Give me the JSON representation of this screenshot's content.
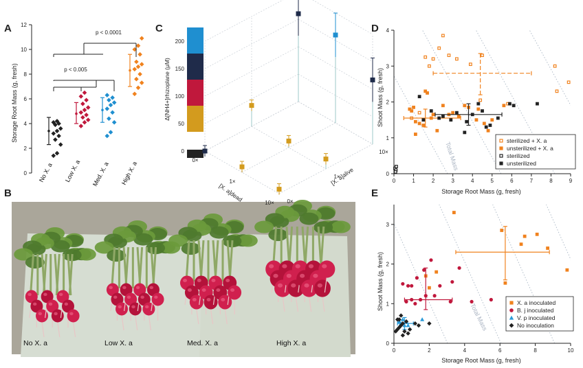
{
  "panels": {
    "a": "A",
    "b": "B",
    "c": "C",
    "d": "D",
    "e": "E"
  },
  "photo_labels": [
    "No X. a",
    "Low X. a",
    "Med. X. a",
    "High X. a"
  ],
  "colors": {
    "none": "#222222",
    "low": "#c0183c",
    "med": "#1f8fd0",
    "high": "#f0821e",
    "navy": "#1f2b4a",
    "gold": "#d39b1e",
    "bj": "#c0183c",
    "vp": "#2a9ad8",
    "guide": "#a9b6c4"
  },
  "chart_data": [
    {
      "panel": "A",
      "type": "scatter",
      "categories": [
        "No X. a",
        "Low X. a",
        "Med. X. a",
        "High X. a"
      ],
      "ylabel": "Storage Root Mass (g, fresh)",
      "ylim": [
        0,
        12
      ],
      "yticks": [
        0,
        2,
        4,
        6,
        8,
        10,
        12
      ],
      "series": [
        {
          "category": "No X. a",
          "mean": 3.4,
          "sd_low": 2.3,
          "sd_high": 4.5,
          "values": [
            1.4,
            1.6,
            2.3,
            2.7,
            3.0,
            3.2,
            3.4,
            3.6,
            3.9,
            4.0,
            4.1,
            4.2
          ]
        },
        {
          "category": "Low X. a",
          "mean": 4.8,
          "sd_low": 4.0,
          "sd_high": 5.7,
          "values": [
            3.8,
            4.1,
            4.3,
            4.5,
            4.7,
            4.9,
            5.1,
            5.3,
            5.6,
            5.9,
            6.2,
            6.5
          ]
        },
        {
          "category": "Med. X. a",
          "mean": 5.1,
          "sd_low": 4.1,
          "sd_high": 6.1,
          "values": [
            3.0,
            3.3,
            4.1,
            4.4,
            4.9,
            5.2,
            5.5,
            5.7,
            5.9,
            6.1,
            6.3
          ]
        },
        {
          "category": "High X. a",
          "mean": 8.3,
          "sd_low": 7.0,
          "sd_high": 9.6,
          "values": [
            6.4,
            6.9,
            7.3,
            7.6,
            8.0,
            8.4,
            8.6,
            8.8,
            9.0,
            9.6,
            10.0,
            10.3,
            10.9
          ]
        }
      ],
      "annotations": [
        {
          "text": "p < 0.005",
          "from": 0,
          "to": 2,
          "y": 7.5
        },
        {
          "text": "p < 0.0001",
          "from": 0,
          "to": 3,
          "y": 10.5
        }
      ]
    },
    {
      "panel": "C",
      "type": "scatter",
      "zlabel": "Δ[NH4+]rhizoplane (μM)",
      "xlabel": "[X. a]dead",
      "ylabel": "[X. a]alive",
      "zlim": [
        0,
        200
      ],
      "zticks": [
        0,
        50,
        100,
        150,
        200
      ],
      "dead_ticks": [
        "0×",
        "1×",
        "10×"
      ],
      "alive_ticks": [
        "0×",
        "1×",
        "10×"
      ],
      "colorbar": [
        "#222222",
        "#d39b1e",
        "#c0183c",
        "#1f2b4a",
        "#1f8fd0"
      ],
      "points": [
        {
          "dead": "0×",
          "alive": "0×",
          "z": 0,
          "color": "navy"
        },
        {
          "dead": "1×",
          "alive": "0×",
          "z": 10,
          "color": "gold"
        },
        {
          "dead": "10×",
          "alive": "0×",
          "z": 8,
          "color": "gold"
        },
        {
          "dead": "0×",
          "alive": "1×",
          "z": 38,
          "color": "gold"
        },
        {
          "dead": "1×",
          "alive": "1×",
          "z": 12,
          "color": "gold"
        },
        {
          "dead": "10×",
          "alive": "1×",
          "z": 18,
          "color": "gold"
        },
        {
          "dead": "0×",
          "alive": "10×",
          "z": 160,
          "color": "navy"
        },
        {
          "dead": "1×",
          "alive": "10×",
          "z": 160,
          "color": "med"
        },
        {
          "dead": "10×",
          "alive": "10×",
          "z": 117,
          "color": "navy"
        }
      ]
    },
    {
      "panel": "D",
      "type": "scatter",
      "xlabel": "Storage Root Mass (g, fresh)",
      "ylabel": "Shoot Mass (g, fresh)",
      "xlim": [
        0,
        9
      ],
      "ylim": [
        0,
        4
      ],
      "xticks": [
        0,
        1,
        2,
        3,
        4,
        5,
        6,
        7,
        8,
        9
      ],
      "yticks": [
        0,
        1,
        2,
        3,
        4
      ],
      "guide_label": "Total Mass",
      "series": [
        {
          "name": "sterilized + X. a",
          "marker": "square-open",
          "color": "high",
          "points": [
            [
              1.8,
              3.0
            ],
            [
              2.3,
              3.5
            ],
            [
              3.2,
              3.2
            ],
            [
              2.8,
              3.3
            ],
            [
              1.6,
              3.25
            ],
            [
              2.0,
              3.2
            ],
            [
              3.9,
              3.05
            ],
            [
              4.5,
              3.3
            ],
            [
              2.5,
              3.85
            ],
            [
              5.8,
              1.95
            ],
            [
              8.3,
              2.3
            ],
            [
              8.2,
              3.0
            ],
            [
              8.9,
              2.55
            ],
            [
              4.4,
              2.05
            ],
            [
              1.3,
              1.7
            ],
            [
              0.9,
              1.55
            ]
          ],
          "mean": [
            4.4,
            2.8
          ],
          "xerr": [
            2.0,
            7.0
          ],
          "yerr": [
            2.2,
            3.35
          ]
        },
        {
          "name": "unsterilized + X. a",
          "marker": "square-filled",
          "color": "high",
          "points": [
            [
              0.8,
              1.8
            ],
            [
              0.9,
              1.75
            ],
            [
              1.0,
              1.85
            ],
            [
              1.1,
              1.1
            ],
            [
              1.3,
              1.4
            ],
            [
              1.5,
              1.35
            ],
            [
              1.6,
              2.3
            ],
            [
              1.7,
              2.25
            ],
            [
              1.9,
              1.55
            ],
            [
              2.0,
              1.65
            ],
            [
              2.2,
              1.2
            ],
            [
              2.5,
              1.9
            ],
            [
              2.8,
              1.65
            ],
            [
              3.0,
              1.7
            ],
            [
              3.3,
              1.6
            ],
            [
              3.6,
              1.9
            ],
            [
              3.8,
              1.85
            ],
            [
              4.2,
              1.5
            ],
            [
              4.3,
              1.8
            ],
            [
              4.6,
              1.4
            ],
            [
              4.8,
              1.2
            ],
            [
              5.0,
              1.5
            ],
            [
              5.6,
              1.9
            ],
            [
              1.1,
              1.45
            ]
          ],
          "mean": [
            1.6,
            1.55
          ],
          "xerr": [
            0.5,
            3.4
          ],
          "yerr": [
            1.3,
            1.8
          ]
        },
        {
          "name": "sterilized",
          "marker": "square-open",
          "color": "none",
          "points": [
            [
              0.05,
              0.15
            ],
            [
              0.1,
              0.1
            ],
            [
              0.12,
              0.2
            ],
            [
              0.08,
              0.05
            ]
          ]
        },
        {
          "name": "unsterilized",
          "marker": "square-filled",
          "color": "none",
          "points": [
            [
              1.3,
              2.15
            ],
            [
              1.9,
              1.75
            ],
            [
              2.3,
              1.55
            ],
            [
              2.9,
              1.5
            ],
            [
              3.2,
              1.7
            ],
            [
              3.6,
              1.15
            ],
            [
              3.7,
              1.45
            ],
            [
              4.0,
              1.65
            ],
            [
              4.3,
              1.95
            ],
            [
              4.5,
              1.75
            ],
            [
              4.7,
              1.3
            ],
            [
              4.9,
              1.35
            ],
            [
              5.3,
              1.55
            ],
            [
              5.9,
              1.95
            ],
            [
              6.1,
              1.9
            ],
            [
              7.3,
              1.95
            ],
            [
              2.5,
              1.6
            ],
            [
              1.5,
              1.5
            ]
          ],
          "mean": [
            3.8,
            1.65
          ],
          "xerr": [
            2.1,
            5.5
          ],
          "yerr": [
            1.35,
            1.95
          ]
        }
      ]
    },
    {
      "panel": "E",
      "type": "scatter",
      "xlabel": "Storage Root Mass (g, fresh)",
      "ylabel": "Shoot Mass (g, fresh)",
      "xlim": [
        0,
        10
      ],
      "ylim": [
        0,
        3.5
      ],
      "xticks": [
        0,
        2,
        4,
        6,
        8,
        10
      ],
      "yticks": [
        0,
        1,
        2,
        3
      ],
      "guide_label": "Total Mass",
      "series": [
        {
          "name": "X. a inoculated",
          "marker": "square-filled",
          "color": "high",
          "points": [
            [
              3.4,
              3.3
            ],
            [
              2.4,
              1.8
            ],
            [
              1.8,
              1.7
            ],
            [
              2.0,
              1.4
            ],
            [
              6.1,
              2.85
            ],
            [
              6.3,
              1.52
            ],
            [
              7.2,
              2.5
            ],
            [
              7.4,
              2.7
            ],
            [
              8.1,
              2.75
            ],
            [
              8.7,
              2.4
            ],
            [
              9.8,
              1.85
            ]
          ],
          "mean": [
            6.3,
            2.3
          ],
          "xerr": [
            3.5,
            8.8
          ],
          "yerr": [
            1.6,
            2.95
          ]
        },
        {
          "name": "B. j inoculated",
          "marker": "circle",
          "color": "bj",
          "points": [
            [
              0.5,
              1.5
            ],
            [
              0.8,
              1.45
            ],
            [
              1.0,
              1.45
            ],
            [
              1.3,
              1.65
            ],
            [
              1.7,
              1.85
            ],
            [
              2.1,
              2.1
            ],
            [
              2.3,
              1.2
            ],
            [
              2.6,
              1.45
            ],
            [
              3.3,
              1.55
            ],
            [
              3.7,
              1.9
            ],
            [
              4.4,
              1.05
            ],
            [
              5.5,
              1.1
            ],
            [
              1.2,
              1.0
            ],
            [
              1.0,
              1.1
            ],
            [
              0.7,
              1.05
            ],
            [
              1.5,
              1.1
            ],
            [
              3.2,
              1.05
            ],
            [
              1.8,
              1.2
            ]
          ],
          "mean": [
            1.8,
            1.1
          ],
          "xerr": [
            0.6,
            3.3
          ],
          "yerr": [
            0.85,
            1.9
          ]
        },
        {
          "name": "V. p inoculated",
          "marker": "triangle",
          "color": "vp",
          "points": [
            [
              0.3,
              0.55
            ],
            [
              0.5,
              0.6
            ],
            [
              0.7,
              0.55
            ],
            [
              0.6,
              0.45
            ],
            [
              1.6,
              0.6
            ],
            [
              0.4,
              0.5
            ],
            [
              0.8,
              0.45
            ]
          ],
          "mean": [
            0.6,
            0.5
          ],
          "xerr": [
            0.2,
            1.1
          ],
          "yerr": [
            0.35,
            0.65
          ]
        },
        {
          "name": "No inoculation",
          "marker": "diamond",
          "color": "none",
          "points": [
            [
              0.1,
              0.3
            ],
            [
              0.2,
              0.35
            ],
            [
              0.3,
              0.4
            ],
            [
              0.4,
              0.45
            ],
            [
              0.5,
              0.5
            ],
            [
              0.6,
              0.3
            ],
            [
              0.7,
              0.55
            ],
            [
              0.2,
              0.6
            ],
            [
              0.4,
              0.7
            ],
            [
              0.9,
              0.35
            ],
            [
              1.2,
              0.5
            ],
            [
              1.4,
              0.45
            ],
            [
              2.0,
              0.5
            ],
            [
              0.8,
              0.25
            ],
            [
              0.5,
              0.2
            ],
            [
              0.3,
              0.6
            ]
          ]
        }
      ]
    }
  ]
}
